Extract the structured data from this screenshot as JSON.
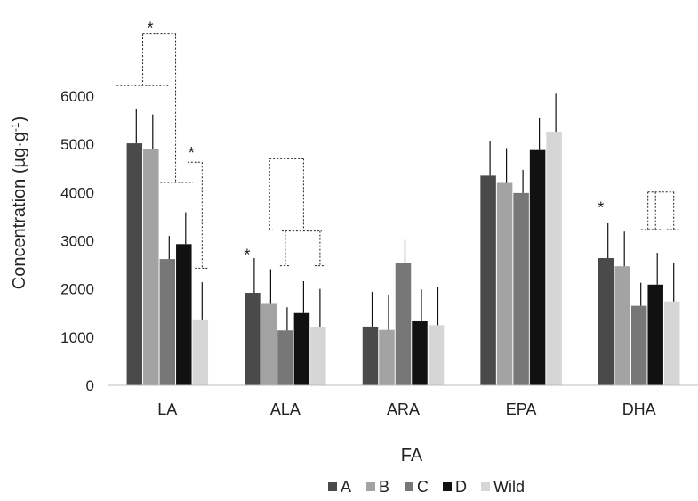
{
  "chart_data": {
    "type": "bar",
    "categories": [
      "LA",
      "ALA",
      "ARA",
      "EPA",
      "DHA"
    ],
    "xlabel": "FA",
    "ylabel": "Concentration (µg·g",
    "ylabel_sup": "-1",
    "ylabel_close": ")",
    "ylim": [
      0,
      6000
    ],
    "yticks": [
      0,
      1000,
      2000,
      3000,
      4000,
      5000,
      6000
    ],
    "legend_position": "bottom",
    "series": [
      {
        "name": "A",
        "color": "#4a4a4a",
        "values": [
          5020,
          1920,
          1220,
          4350,
          2640
        ],
        "errors": [
          720,
          720,
          720,
          720,
          720
        ]
      },
      {
        "name": "B",
        "color": "#a3a3a3",
        "values": [
          4900,
          1690,
          1150,
          4200,
          2470
        ],
        "errors": [
          720,
          720,
          720,
          720,
          720
        ]
      },
      {
        "name": "C",
        "color": "#777777",
        "values": [
          2620,
          1140,
          2540,
          3990,
          1650
        ],
        "errors": [
          480,
          480,
          480,
          480,
          480
        ]
      },
      {
        "name": "D",
        "color": "#111111",
        "values": [
          2930,
          1500,
          1330,
          4880,
          2090
        ],
        "errors": [
          660,
          660,
          660,
          660,
          660
        ]
      },
      {
        "name": "Wild",
        "color": "#d6d6d6",
        "values": [
          1350,
          1210,
          1250,
          5260,
          1740
        ],
        "errors": [
          790,
          790,
          790,
          790,
          790
        ]
      }
    ],
    "significance_marks": [
      "*",
      "*",
      "*",
      "*"
    ]
  }
}
